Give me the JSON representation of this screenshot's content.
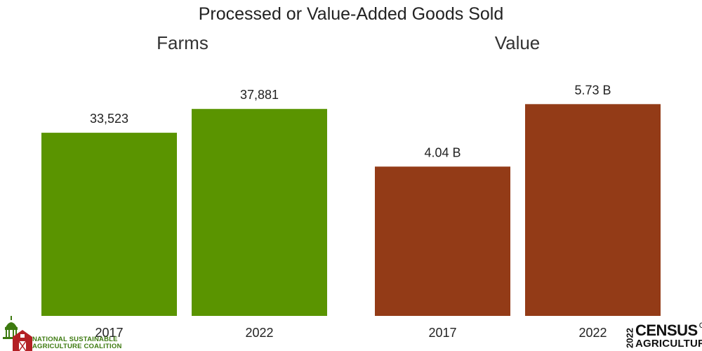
{
  "title": "Processed or Value-Added Goods Sold",
  "chart_data": [
    {
      "type": "bar",
      "title": "Farms",
      "categories": [
        "2017",
        "2022"
      ],
      "values": [
        33523,
        37881
      ],
      "value_labels": [
        "33,523",
        "37,881"
      ],
      "ylim": [
        0,
        46000
      ],
      "grid": false,
      "color": "#5a9400"
    },
    {
      "type": "bar",
      "title": "Value",
      "categories": [
        "2017",
        "2022"
      ],
      "values": [
        4.04,
        5.73
      ],
      "value_labels": [
        "4.04 B",
        "5.73 B"
      ],
      "ylim": [
        0,
        6.8
      ],
      "grid": false,
      "color": "#933b17"
    }
  ],
  "logos": {
    "nsac": {
      "line1": "NATIONAL SUSTAINABLE",
      "line2": "AGRICULTURE COALITION",
      "color": "#3d7a10",
      "barn_color": "#b32024"
    },
    "census": {
      "year": "2022",
      "word": "CENSUS",
      "of": "OF",
      "agri": "AGRICULTURE"
    }
  }
}
